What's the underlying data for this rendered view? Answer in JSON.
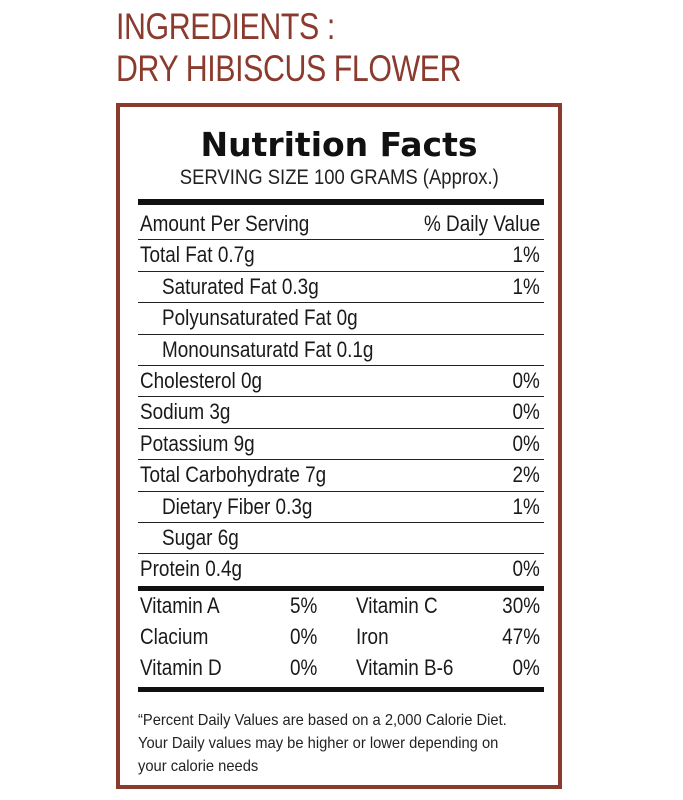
{
  "ingredients": {
    "line1": "INGREDIENTS :",
    "line2": "DRY HIBISCUS FLOWER"
  },
  "nutrition": {
    "title": "Nutrition Facts",
    "serving_size": "SERVING SIZE 100 GRAMS (Approx.)",
    "header": {
      "amount": "Amount Per Serving",
      "dv": "% Daily Value"
    },
    "rows": [
      {
        "name": "Total Fat 0.7g",
        "dv": "1%"
      },
      {
        "name": "Saturated Fat 0.3g",
        "dv": "1%"
      },
      {
        "name": "Polyunsaturated Fat 0g",
        "dv": ""
      },
      {
        "name": "Monounsaturatd Fat 0.1g",
        "dv": ""
      },
      {
        "name": "Cholesterol 0g",
        "dv": "0%"
      },
      {
        "name": "Sodium 3g",
        "dv": "0%"
      },
      {
        "name": "Potassium 9g",
        "dv": "0%"
      },
      {
        "name": "Total Carbohydrate 7g",
        "dv": "2%"
      },
      {
        "name": "Dietary Fiber 0.3g",
        "dv": "1%"
      },
      {
        "name": "Sugar 6g",
        "dv": ""
      },
      {
        "name": "Protein 0.4g",
        "dv": "0%"
      }
    ],
    "vitamins": [
      {
        "a_name": "Vitamin A",
        "a_dv": "5%",
        "b_name": "Vitamin C",
        "b_dv": "30%"
      },
      {
        "a_name": "Clacium",
        "a_dv": "0%",
        "b_name": "Iron",
        "b_dv": "47%"
      },
      {
        "a_name": "Vitamin D",
        "a_dv": "0%",
        "b_name": "Vitamin B-6",
        "b_dv": "0%"
      }
    ],
    "footnote": {
      "line1": "“Percent Daily Values are based on a 2,000 Calorie Diet.",
      "line2": "Your Daily values may be higher or lower depending on",
      "line3": "your calorie needs"
    }
  }
}
